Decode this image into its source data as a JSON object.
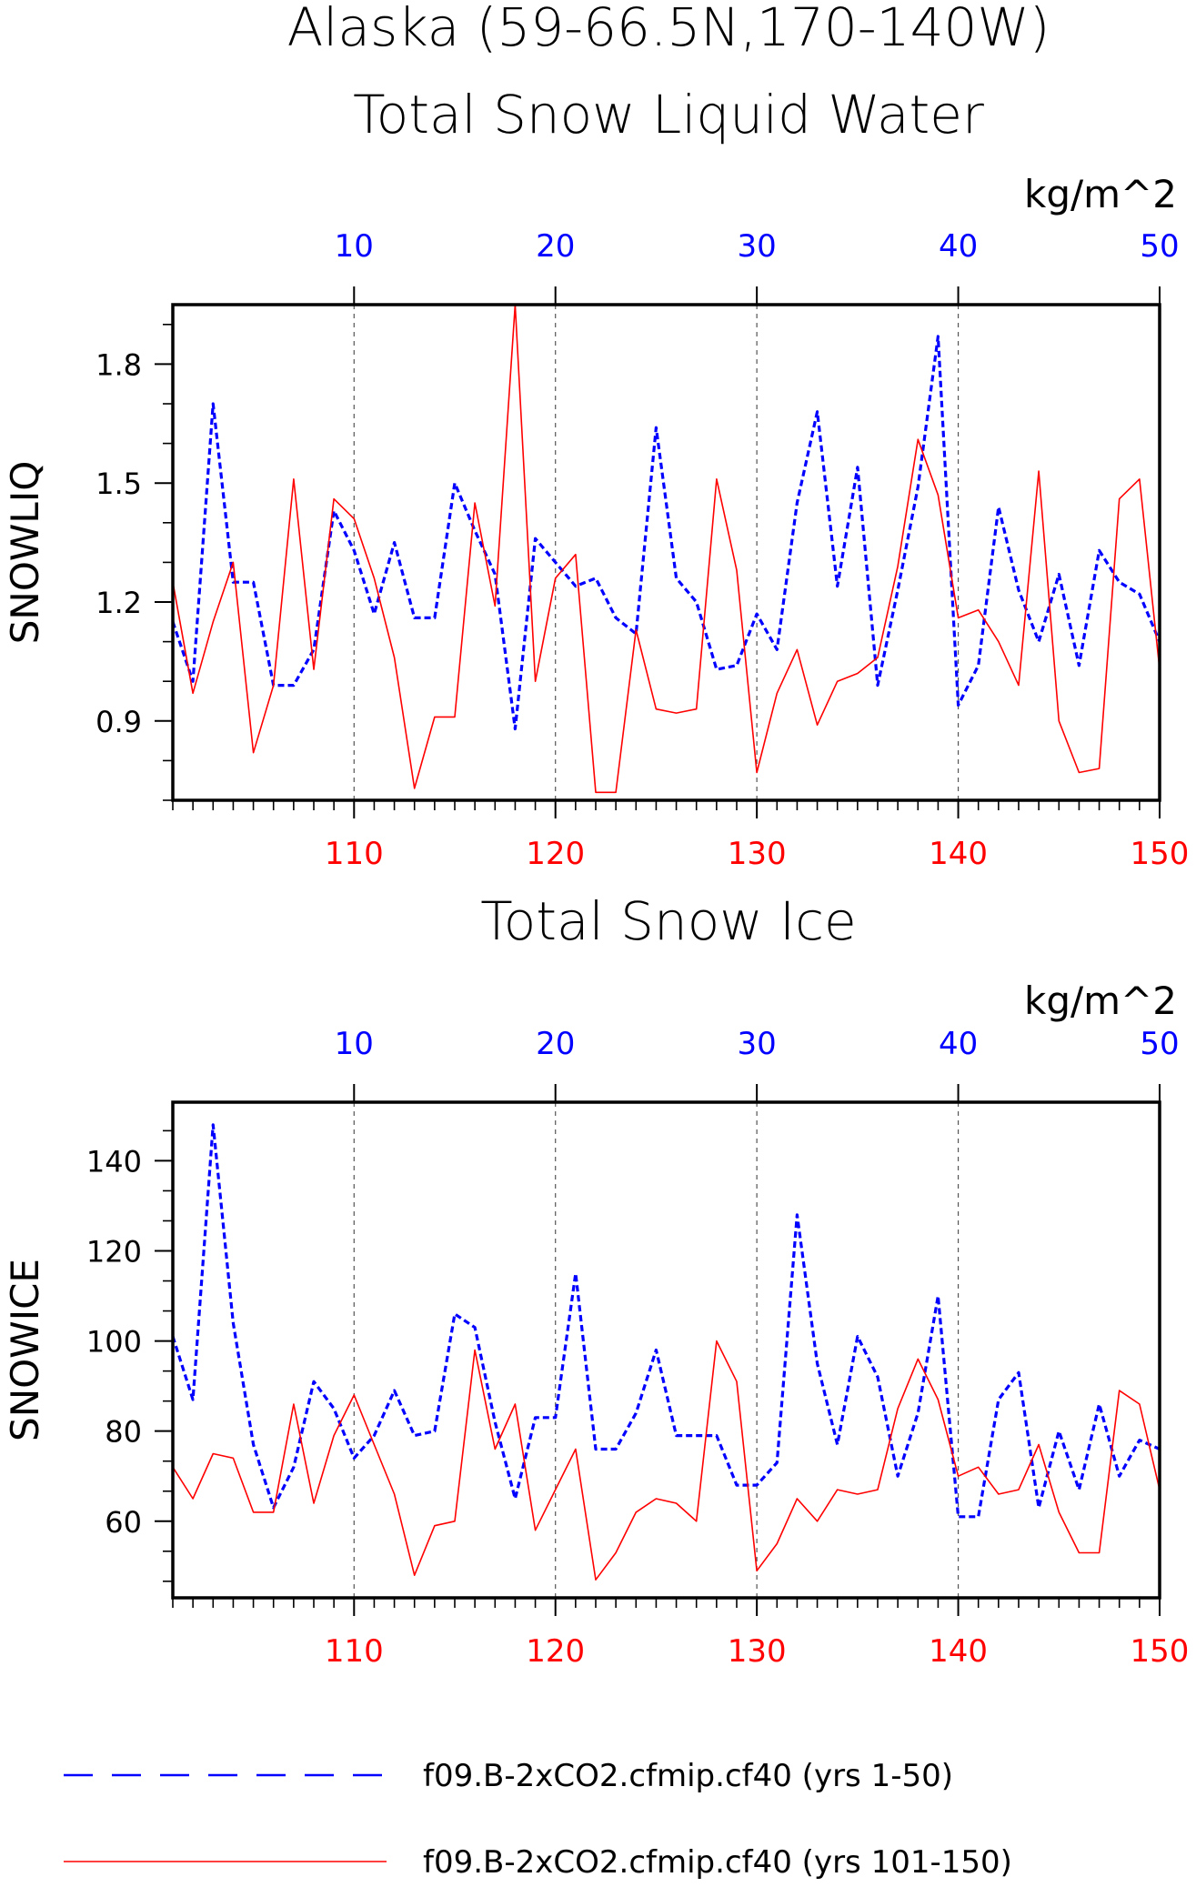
{
  "header": {
    "title_line1": "Alaska (59-66.5N,170-140W)",
    "title_line2": "Total Snow Liquid Water"
  },
  "legend": {
    "entries": [
      {
        "label": "f09.B-2xCO2.cfmip.cf40 (yrs 1-50)",
        "color": "#0000ff",
        "style": "dashed"
      },
      {
        "label": "f09.B-2xCO2.cfmip.cf40 (yrs 101-150)",
        "color": "#ff0000",
        "style": "solid"
      }
    ]
  },
  "chart_data": [
    {
      "type": "line",
      "title": "Total Snow Liquid Water",
      "units": "kg/m^2",
      "ylabel": "SNOWLIQ",
      "ylim": [
        0.7,
        1.95
      ],
      "yticks": [
        0.9,
        1.2,
        1.5,
        1.8
      ],
      "ytick_labels": [
        "0.9",
        "1.2",
        "1.5",
        "1.8"
      ],
      "x_top": {
        "range": [
          1,
          50
        ],
        "ticks": [
          10,
          20,
          30,
          40,
          50
        ],
        "tick_labels": [
          "10",
          "20",
          "30",
          "40",
          "50"
        ],
        "color": "#0000ff"
      },
      "x_bottom": {
        "range": [
          101,
          150
        ],
        "ticks": [
          110,
          120,
          130,
          140,
          150
        ],
        "tick_labels": [
          "110",
          "120",
          "130",
          "140",
          "150"
        ],
        "color": "#ff0000"
      },
      "grid_x": true,
      "series": [
        {
          "name": "f09.B-2xCO2.cfmip.cf40 (yrs 1-50)",
          "color": "#0000ff",
          "style": "dashed",
          "axis": "top",
          "x": [
            1,
            2,
            3,
            4,
            5,
            6,
            7,
            8,
            9,
            10,
            11,
            12,
            13,
            14,
            15,
            16,
            17,
            18,
            19,
            20,
            21,
            22,
            23,
            24,
            25,
            26,
            27,
            28,
            29,
            30,
            31,
            32,
            33,
            34,
            35,
            36,
            37,
            38,
            39,
            40,
            41,
            42,
            43,
            44,
            45,
            46,
            47,
            48,
            49,
            50
          ],
          "values": [
            1.15,
            1.0,
            1.7,
            1.25,
            1.25,
            0.99,
            0.99,
            1.08,
            1.43,
            1.33,
            1.17,
            1.35,
            1.16,
            1.16,
            1.5,
            1.38,
            1.27,
            0.88,
            1.36,
            1.3,
            1.24,
            1.26,
            1.16,
            1.12,
            1.64,
            1.26,
            1.2,
            1.03,
            1.04,
            1.17,
            1.08,
            1.45,
            1.68,
            1.24,
            1.54,
            0.99,
            1.23,
            1.49,
            1.87,
            0.94,
            1.04,
            1.44,
            1.23,
            1.1,
            1.27,
            1.04,
            1.33,
            1.25,
            1.22,
            1.1
          ]
        },
        {
          "name": "f09.B-2xCO2.cfmip.cf40 (yrs 101-150)",
          "color": "#ff0000",
          "style": "solid",
          "axis": "bottom",
          "x": [
            101,
            102,
            103,
            104,
            105,
            106,
            107,
            108,
            109,
            110,
            111,
            112,
            113,
            114,
            115,
            116,
            117,
            118,
            119,
            120,
            121,
            122,
            123,
            124,
            125,
            126,
            127,
            128,
            129,
            130,
            131,
            132,
            133,
            134,
            135,
            136,
            137,
            138,
            139,
            140,
            141,
            142,
            143,
            144,
            145,
            146,
            147,
            148,
            149,
            150
          ],
          "values": [
            1.25,
            0.97,
            1.15,
            1.3,
            0.82,
            0.99,
            1.51,
            1.03,
            1.46,
            1.41,
            1.26,
            1.06,
            0.73,
            0.91,
            0.91,
            1.45,
            1.19,
            1.95,
            1.0,
            1.26,
            1.32,
            0.72,
            0.72,
            1.13,
            0.93,
            0.92,
            0.93,
            1.51,
            1.28,
            0.77,
            0.97,
            1.08,
            0.89,
            1.0,
            1.02,
            1.06,
            1.29,
            1.61,
            1.47,
            1.16,
            1.18,
            1.1,
            0.99,
            1.53,
            0.9,
            0.77,
            0.78,
            1.46,
            1.51,
            1.03
          ]
        }
      ]
    },
    {
      "type": "line",
      "title": "Total Snow Ice",
      "units": "kg/m^2",
      "ylabel": "SNOWICE",
      "ylim": [
        43,
        153
      ],
      "yticks": [
        60,
        80,
        100,
        120,
        140
      ],
      "ytick_labels": [
        "60",
        "80",
        "100",
        "120",
        "140"
      ],
      "x_top": {
        "range": [
          1,
          50
        ],
        "ticks": [
          10,
          20,
          30,
          40,
          50
        ],
        "tick_labels": [
          "10",
          "20",
          "30",
          "40",
          "50"
        ],
        "color": "#0000ff"
      },
      "x_bottom": {
        "range": [
          101,
          150
        ],
        "ticks": [
          110,
          120,
          130,
          140,
          150
        ],
        "tick_labels": [
          "110",
          "120",
          "130",
          "140",
          "150"
        ],
        "color": "#ff0000"
      },
      "grid_x": true,
      "series": [
        {
          "name": "f09.B-2xCO2.cfmip.cf40 (yrs 1-50)",
          "color": "#0000ff",
          "style": "dashed",
          "axis": "top",
          "x": [
            1,
            2,
            3,
            4,
            5,
            6,
            7,
            8,
            9,
            10,
            11,
            12,
            13,
            14,
            15,
            16,
            17,
            18,
            19,
            20,
            21,
            22,
            23,
            24,
            25,
            26,
            27,
            28,
            29,
            30,
            31,
            32,
            33,
            34,
            35,
            36,
            37,
            38,
            39,
            40,
            41,
            42,
            43,
            44,
            45,
            46,
            47,
            48,
            49,
            50
          ],
          "values": [
            101,
            87,
            148,
            104,
            77,
            63,
            72,
            91,
            85,
            74,
            79,
            89,
            79,
            80,
            106,
            103,
            82,
            65,
            83,
            83,
            115,
            76,
            76,
            84,
            98,
            79,
            79,
            79,
            68,
            68,
            73,
            128,
            95,
            77,
            101,
            92,
            70,
            84,
            110,
            61,
            61,
            87,
            93,
            63,
            80,
            67,
            86,
            70,
            78,
            76
          ]
        },
        {
          "name": "f09.B-2xCO2.cfmip.cf40 (yrs 101-150)",
          "color": "#ff0000",
          "style": "solid",
          "axis": "bottom",
          "x": [
            101,
            102,
            103,
            104,
            105,
            106,
            107,
            108,
            109,
            110,
            111,
            112,
            113,
            114,
            115,
            116,
            117,
            118,
            119,
            120,
            121,
            122,
            123,
            124,
            125,
            126,
            127,
            128,
            129,
            130,
            131,
            132,
            133,
            134,
            135,
            136,
            137,
            138,
            139,
            140,
            141,
            142,
            143,
            144,
            145,
            146,
            147,
            148,
            149,
            150
          ],
          "values": [
            72,
            65,
            75,
            74,
            62,
            62,
            86,
            64,
            79,
            88,
            77,
            66,
            48,
            59,
            60,
            98,
            76,
            86,
            58,
            67,
            76,
            47,
            53,
            62,
            65,
            64,
            60,
            100,
            91,
            49,
            55,
            65,
            60,
            67,
            66,
            67,
            85,
            96,
            87,
            70,
            72,
            66,
            67,
            77,
            62,
            53,
            53,
            89,
            86,
            67
          ]
        }
      ]
    }
  ]
}
